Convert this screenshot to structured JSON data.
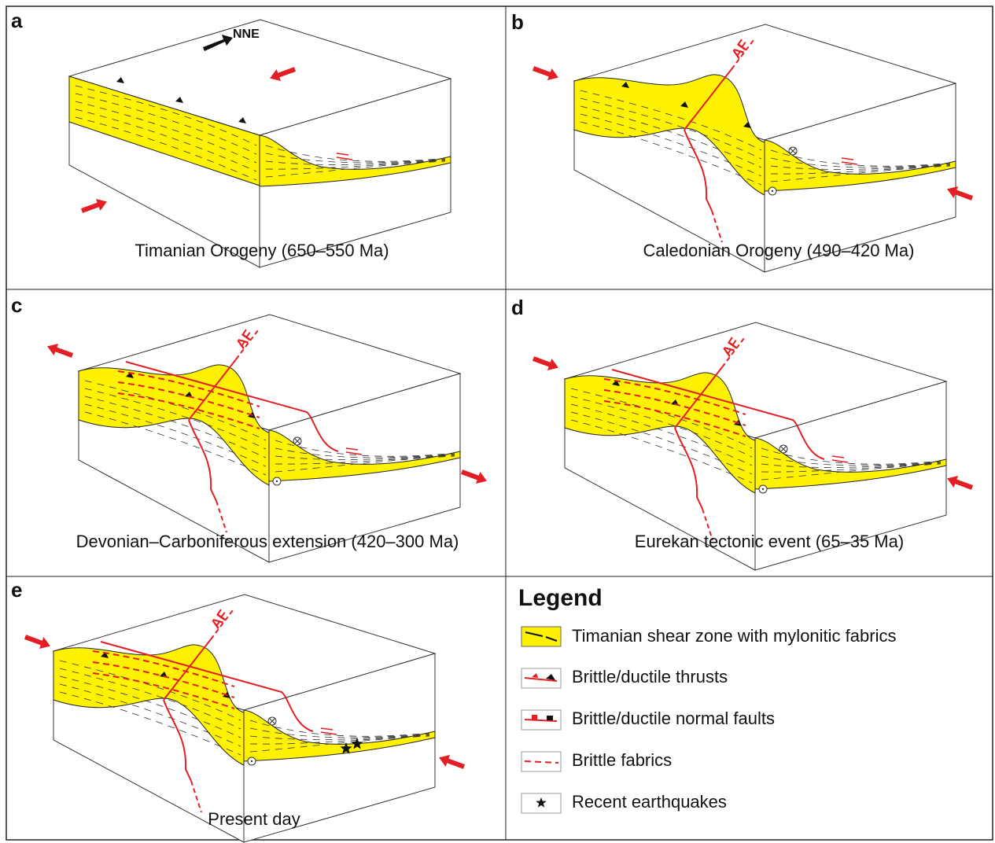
{
  "panels": [
    {
      "letter": "a",
      "caption": "Timanian Orogeny (650–550 Ma)",
      "labels": [
        "NNE"
      ]
    },
    {
      "letter": "b",
      "caption": "Caledonian Orogeny (490–420 Ma)",
      "labels": [
        "AF"
      ]
    },
    {
      "letter": "c",
      "caption": "Devonian–Carboniferous extension (420–300 Ma)",
      "labels": [
        "AF"
      ]
    },
    {
      "letter": "d",
      "caption": "Eurekan tectonic event (65–35 Ma)",
      "labels": [
        "AF"
      ]
    },
    {
      "letter": "e",
      "caption": "Present day",
      "labels": [
        "AF"
      ]
    }
  ],
  "legend": {
    "title": "Legend",
    "items": [
      "Timanian shear zone with mylonitic fabrics",
      "Brittle/ductile thrusts",
      "Brittle/ductile normal faults",
      "Brittle fabrics",
      "Recent earthquakes"
    ]
  }
}
